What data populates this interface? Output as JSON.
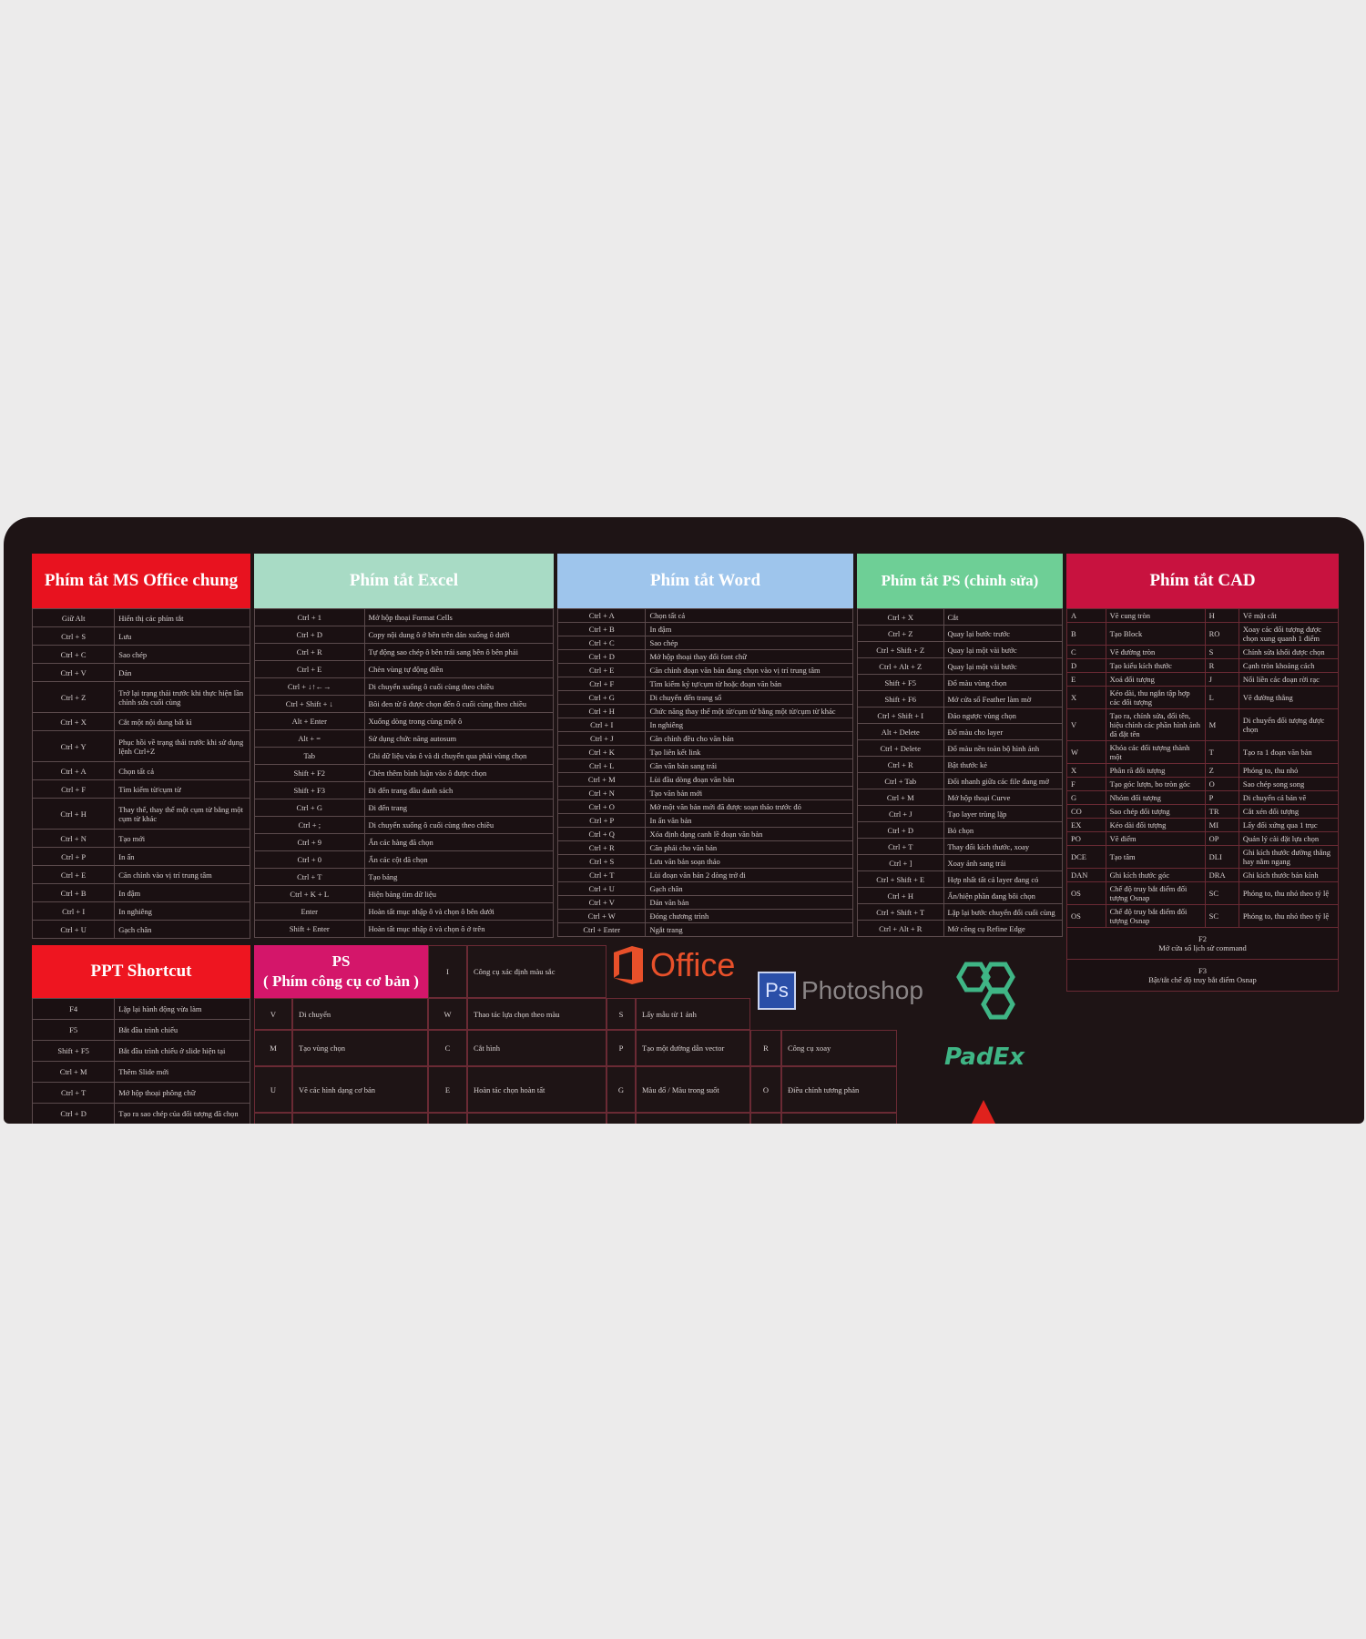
{
  "office": {
    "title": "Phím tắt MS Office chung",
    "color": "#e8121f",
    "rows": [
      {
        "key": "Giữ Alt",
        "desc": "Hiển thị các phím tắt"
      },
      {
        "key": "Ctrl + S",
        "desc": "Lưu"
      },
      {
        "key": "Ctrl + C",
        "desc": "Sao chép"
      },
      {
        "key": "Ctrl + V",
        "desc": "Dán"
      },
      {
        "key": "Ctrl + Z",
        "desc": "Trở lại trạng thái trước khi thực hiện lần chỉnh sửa cuối cùng"
      },
      {
        "key": "Ctrl + X",
        "desc": "Cắt một nội dung bất kì"
      },
      {
        "key": "Ctrl + Y",
        "desc": "Phục hồi về trạng thái trước khi sử dụng lệnh Ctrl+Z"
      },
      {
        "key": "Ctrl + A",
        "desc": "Chọn tất cả"
      },
      {
        "key": "Ctrl + F",
        "desc": "Tìm kiếm từ/cụm từ"
      },
      {
        "key": "Ctrl + H",
        "desc": "Thay thế, thay thế một cụm từ bằng một cụm từ khác"
      },
      {
        "key": "Ctrl + N",
        "desc": "Tạo mới"
      },
      {
        "key": "Ctrl + P",
        "desc": "In ấn"
      },
      {
        "key": "Ctrl + E",
        "desc": "Căn chỉnh vào vị trí trung tâm"
      },
      {
        "key": "Ctrl + B",
        "desc": "In đậm"
      },
      {
        "key": "Ctrl + I",
        "desc": "In nghiêng"
      },
      {
        "key": "Ctrl + U",
        "desc": "Gạch chân"
      }
    ]
  },
  "excel": {
    "title": "Phím tắt Excel",
    "color": "#a8dbc5",
    "rows": [
      {
        "key": "Ctrl + 1",
        "desc": "Mở hộp thoại Format Cells"
      },
      {
        "key": "Ctrl + D",
        "desc": "Copy nội dung ô ở bên trên dán xuống ô dưới"
      },
      {
        "key": "Ctrl + R",
        "desc": "Tự động sao chép ô bên trái sang bên ô bên phải"
      },
      {
        "key": "Ctrl + E",
        "desc": "Chèn vùng tự động điền"
      },
      {
        "key": "Ctrl + ↓↑←→",
        "desc": "Di chuyển xuống ô cuối cùng theo chiều"
      },
      {
        "key": "Ctrl + Shift + ↓",
        "desc": "Bôi đen từ ô được chọn đến ô cuối cùng theo chiều"
      },
      {
        "key": "Alt + Enter",
        "desc": "Xuống dòng trong cùng một ô"
      },
      {
        "key": "Alt + =",
        "desc": "Sử dụng chức năng autosum"
      },
      {
        "key": "Tab",
        "desc": "Ghi dữ liệu vào ô và di chuyển qua phải vùng chọn"
      },
      {
        "key": "Shift + F2",
        "desc": "Chèn thêm bình luận vào ô được chọn"
      },
      {
        "key": "Shift + F3",
        "desc": "Đi đến trang đầu danh sách"
      },
      {
        "key": "Ctrl + G",
        "desc": "Đi đến trang"
      },
      {
        "key": "Ctrl + ;",
        "desc": "Di chuyển xuống ô cuối cùng theo chiều"
      },
      {
        "key": "Ctrl + 9",
        "desc": "Ẩn các hàng đã chọn"
      },
      {
        "key": "Ctrl + 0",
        "desc": "Ẩn các cột đã chọn"
      },
      {
        "key": "Ctrl + T",
        "desc": "Tạo bảng"
      },
      {
        "key": "Ctrl + K + L",
        "desc": "Hiện bảng tìm dữ liệu"
      },
      {
        "key": "Enter",
        "desc": "Hoàn tất mục nhập ô và chọn ô bên dưới"
      },
      {
        "key": "Shift + Enter",
        "desc": "Hoàn tất mục nhập ô và chọn ô ở trên"
      }
    ]
  },
  "word": {
    "title": "Phím tắt Word",
    "color": "#9ec5ec",
    "rows": [
      {
        "key": "Ctrl + A",
        "desc": "Chọn tất cả"
      },
      {
        "key": "Ctrl + B",
        "desc": "In đậm"
      },
      {
        "key": "Ctrl + C",
        "desc": "Sao chép"
      },
      {
        "key": "Ctrl + D",
        "desc": "Mở hộp thoại thay đổi font chữ"
      },
      {
        "key": "Ctrl + E",
        "desc": "Căn chỉnh đoạn văn bản đang chọn vào vị trí trung tâm"
      },
      {
        "key": "Ctrl + F",
        "desc": "Tìm kiếm ký tự/cụm từ hoặc đoạn văn bản"
      },
      {
        "key": "Ctrl + G",
        "desc": "Di chuyển đến trang số"
      },
      {
        "key": "Ctrl + H",
        "desc": "Chức năng thay thế một từ/cụm từ bằng một từ/cụm từ khác"
      },
      {
        "key": "Ctrl + I",
        "desc": "In nghiêng"
      },
      {
        "key": "Ctrl + J",
        "desc": "Căn chỉnh đều cho văn bản"
      },
      {
        "key": "Ctrl + K",
        "desc": "Tạo liên kết link"
      },
      {
        "key": "Ctrl + L",
        "desc": "Căn văn bản sang trái"
      },
      {
        "key": "Ctrl + M",
        "desc": "Lùi đầu dòng đoạn văn bản"
      },
      {
        "key": "Ctrl + N",
        "desc": "Tạo văn bản mới"
      },
      {
        "key": "Ctrl + O",
        "desc": "Mở một văn bản mới đã được soạn thảo trước đó"
      },
      {
        "key": "Ctrl + P",
        "desc": "In ấn văn bản"
      },
      {
        "key": "Ctrl + Q",
        "desc": "Xóa định dạng canh lề đoạn văn bản"
      },
      {
        "key": "Ctrl + R",
        "desc": "Căn phải cho văn bản"
      },
      {
        "key": "Ctrl + S",
        "desc": "Lưu văn bản soạn thảo"
      },
      {
        "key": "Ctrl + T",
        "desc": "Lùi đoạn văn bản 2 dòng trở đi"
      },
      {
        "key": "Ctrl + U",
        "desc": "Gạch chân"
      },
      {
        "key": "Ctrl + V",
        "desc": "Dán văn bản"
      },
      {
        "key": "Ctrl + W",
        "desc": "Đóng chương trình"
      },
      {
        "key": "Ctrl + Enter",
        "desc": "Ngắt trang"
      }
    ]
  },
  "ps_edit": {
    "title": "Phím tắt PS (chỉnh sửa)",
    "color": "#6ecf96",
    "rows": [
      {
        "key": "Ctrl + X",
        "desc": "Cắt"
      },
      {
        "key": "Ctrl + Z",
        "desc": "Quay lại bước trước"
      },
      {
        "key": "Ctrl + Shift + Z",
        "desc": "Quay lại một vài bước"
      },
      {
        "key": "Ctrl + Alt + Z",
        "desc": "Quay lại một vài bước"
      },
      {
        "key": "Shift + F5",
        "desc": "Đổ màu vùng chọn"
      },
      {
        "key": "Shift + F6",
        "desc": "Mở cửa sổ Feather làm mờ"
      },
      {
        "key": "Ctrl + Shift + I",
        "desc": "Đảo ngược vùng chọn"
      },
      {
        "key": "Alt + Delete",
        "desc": "Đổ màu cho layer"
      },
      {
        "key": "Ctrl + Delete",
        "desc": "Đổ màu nền toàn bộ hình ảnh"
      },
      {
        "key": "Ctrl + R",
        "desc": "Bật thước kẻ"
      },
      {
        "key": "Ctrl + Tab",
        "desc": "Đổi nhanh giữa các file đang mở"
      },
      {
        "key": "Ctrl + M",
        "desc": "Mở hộp thoại Curve"
      },
      {
        "key": "Ctrl + J",
        "desc": "Tạo layer trùng lặp"
      },
      {
        "key": "Ctrl + D",
        "desc": "Bỏ chọn"
      },
      {
        "key": "Ctrl + T",
        "desc": "Thay đổi kích thước, xoay"
      },
      {
        "key": "Ctrl + ]",
        "desc": "Xoay ảnh sang trái"
      },
      {
        "key": "Ctrl + Shift + E",
        "desc": "Hợp nhất tất cả layer đang có"
      },
      {
        "key": "Ctrl + H",
        "desc": "Ẩn/hiện phần đang bôi chọn"
      },
      {
        "key": "Ctrl + Shift + T",
        "desc": "Lặp lại bước chuyển đổi cuối cùng"
      },
      {
        "key": "Ctrl + Alt + R",
        "desc": "Mở công cụ Refine Edge"
      }
    ]
  },
  "cad": {
    "title": "Phím tắt CAD",
    "color": "#c8123f",
    "rows": [
      {
        "k1": "A",
        "d1": "Vẽ cung tròn",
        "k2": "H",
        "d2": "Vẽ mặt cắt"
      },
      {
        "k1": "B",
        "d1": "Tạo Block",
        "k2": "RO",
        "d2": "Xoay các đối tượng được chọn xung quanh 1 điểm"
      },
      {
        "k1": "C",
        "d1": "Vẽ đường tròn",
        "k2": "S",
        "d2": "Chỉnh sửa khối được chọn"
      },
      {
        "k1": "D",
        "d1": "Tạo kiểu kích thước",
        "k2": "R",
        "d2": "Cạnh tròn khoảng cách"
      },
      {
        "k1": "E",
        "d1": "Xoá đối tượng",
        "k2": "J",
        "d2": "Nối liền các đoạn rời rạc"
      },
      {
        "k1": "X",
        "d1": "Kéo dài, thu ngắn tập hợp các đối tượng",
        "k2": "L",
        "d2": "Vẽ đường thẳng"
      },
      {
        "k1": "V",
        "d1": "Tạo ra, chỉnh sửa, đổi tên, hiệu chỉnh các phần hình ảnh đã đặt tên",
        "k2": "M",
        "d2": "Di chuyển đối tượng được chọn"
      },
      {
        "k1": "W",
        "d1": "Khóa các đối tượng thành một",
        "k2": "T",
        "d2": "Tạo ra 1 đoạn văn bản"
      },
      {
        "k1": "X",
        "d1": "Phân rã đối tượng",
        "k2": "Z",
        "d2": "Phóng to, thu nhỏ"
      },
      {
        "k1": "F",
        "d1": "Tạo góc lượn, bo tròn góc",
        "k2": "O",
        "d2": "Sao chép song song"
      },
      {
        "k1": "G",
        "d1": "Nhóm đối tượng",
        "k2": "P",
        "d2": "Di chuyển cả bản vẽ"
      },
      {
        "k1": "CO",
        "d1": "Sao chép đối tượng",
        "k2": "TR",
        "d2": "Cắt xén đối tượng"
      },
      {
        "k1": "EX",
        "d1": "Kéo dài đối tượng",
        "k2": "MI",
        "d2": "Lấy đối xứng qua 1 trục"
      },
      {
        "k1": "PO",
        "d1": "Vẽ điểm",
        "k2": "OP",
        "d2": "Quản lý cài đặt lựa chọn"
      },
      {
        "k1": "DCE",
        "d1": "Tạo tâm",
        "k2": "DLI",
        "d2": "Ghi kích thước đường thẳng hay nằm ngang"
      },
      {
        "k1": "DAN",
        "d1": "Ghi kích thước góc",
        "k2": "DRA",
        "d2": "Ghi kích thước bán kính"
      },
      {
        "k1": "OS",
        "d1": "Chế độ truy bắt điểm đối tượng Osnap",
        "k2": "SC",
        "d2": "Phóng to, thu nhỏ theo tỷ lệ"
      },
      {
        "k1": "OS",
        "d1": "Chế độ truy bắt điểm đối tượng Osnap",
        "k2": "SC",
        "d2": "Phóng to, thu nhỏ theo tỷ lệ"
      }
    ],
    "footer": [
      {
        "key": "F2",
        "desc": "Mở cửa sổ lịch sử command"
      },
      {
        "key": "F3",
        "desc": "Bật/tắt chế độ truy bắt điểm Osnap"
      }
    ]
  },
  "ppt": {
    "title": "PPT Shortcut",
    "color": "#ee1520",
    "rows": [
      {
        "key": "F4",
        "desc": "Lặp lại hành động vừa làm"
      },
      {
        "key": "F5",
        "desc": "Bắt đầu trình chiếu"
      },
      {
        "key": "Shift + F5",
        "desc": "Bắt đầu trình chiếu ở slide hiện tại"
      },
      {
        "key": "Ctrl + M",
        "desc": "Thêm Slide mới"
      },
      {
        "key": "Ctrl + T",
        "desc": "Mở hộp thoại phông chữ"
      },
      {
        "key": "Ctrl + D",
        "desc": "Tạo ra sao chép của đối tượng đã chọn"
      }
    ]
  },
  "ps_basic": {
    "title": "PS",
    "subtitle": "( Phím công cụ cơ bản )",
    "color": "#d4166a",
    "items": [
      {
        "key": "I",
        "desc": "Công cụ xác định màu sắc"
      },
      {
        "key": "V",
        "desc": "Di chuyển"
      },
      {
        "key": "W",
        "desc": "Thao tác lựa chọn theo màu"
      },
      {
        "key": "S",
        "desc": "Lấy mẫu từ 1 ảnh"
      },
      {
        "key": "M",
        "desc": "Tạo vùng chọn"
      },
      {
        "key": "C",
        "desc": "Cắt hình"
      },
      {
        "key": "P",
        "desc": "Tạo một đường dẫn vector"
      },
      {
        "key": "R",
        "desc": "Công cụ xoay"
      },
      {
        "key": "U",
        "desc": "Vẽ các hình dạng cơ bản"
      },
      {
        "key": "E",
        "desc": "Hoàn tác chọn hoàn tất"
      },
      {
        "key": "G",
        "desc": "Màu đổ / Màu trong suốt"
      },
      {
        "key": "O",
        "desc": "Điều chỉnh tương phản"
      }
    ]
  },
  "logos": {
    "office": "Office",
    "office_color": "#e8502a",
    "photoshop_badge": "Ps",
    "photoshop": "Photoshop",
    "photoshop_color": "#2a4fa8",
    "brand": "PadEx",
    "brand_color": "#3fb585"
  }
}
